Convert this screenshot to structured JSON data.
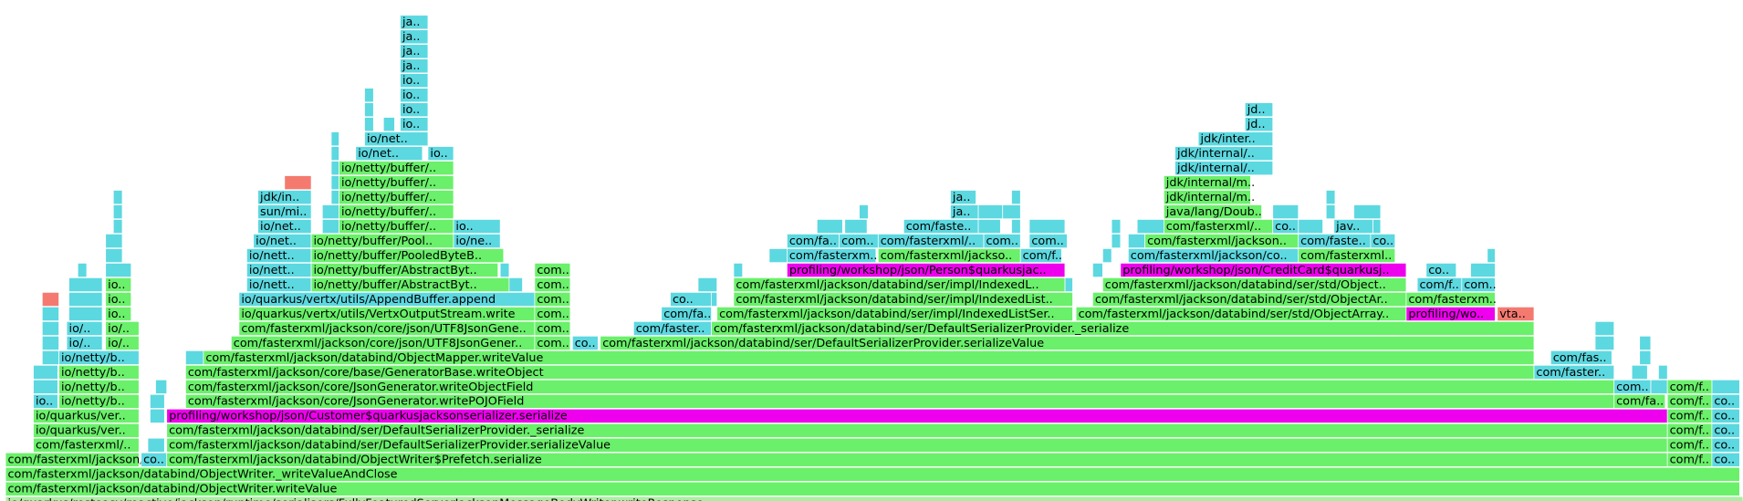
{
  "frames": [
    {
      "label": "io/quarkus/resteasy/reactive/jackson/runtime/serialisers/FullyFeaturedServerJacksonMessageBodyWriter.writeResponse"
    },
    {
      "label": "com/fasterxml/jackson/databind/ObjectWriter.writeValue"
    },
    {
      "label": "com/fasterxml/jackson/databind/ObjectWriter._writeValueAndClose"
    },
    {
      "label": "com/fasterxml/jackson/c.."
    },
    {
      "label": "co.."
    },
    {
      "label": "com/fasterxml/jackson/databind/ObjectWriter$Prefetch.serialize"
    },
    {
      "label": "com/f.."
    },
    {
      "label": "co.."
    },
    {
      "label": "com/fasterxml/.."
    },
    {
      "label": "com/fasterxml/jackson/databind/ser/DefaultSerializerProvider.serializeValue"
    },
    {
      "label": "com/f.."
    },
    {
      "label": "co.."
    },
    {
      "label": "io/quarkus/ver.."
    },
    {
      "label": "com/fasterxml/jackson/databind/ser/DefaultSerializerProvider._serialize"
    },
    {
      "label": "com/f.."
    },
    {
      "label": "co.."
    },
    {
      "label": "io/quarkus/ver.."
    },
    {
      "label": "profiling/workshop/json/Customer$quarkusjacksonserializer.serialize"
    },
    {
      "label": "com/f.."
    },
    {
      "label": "co.."
    },
    {
      "label": "io.."
    },
    {
      "label": "io/netty/b.."
    },
    {
      "label": "com/fasterxml/jackson/core/JsonGenerator.writePOJOField"
    },
    {
      "label": "com/fa.."
    },
    {
      "label": "com/f.."
    },
    {
      "label": "co.."
    },
    {
      "label": "io/netty/b.."
    },
    {
      "label": "com/fasterxml/jackson/core/JsonGenerator.writeObjectField"
    },
    {
      "label": "com.."
    },
    {
      "label": "com/f.."
    },
    {
      "label": "io/netty/b.."
    },
    {
      "label": "com/fasterxml/jackson/core/base/GeneratorBase.writeObject"
    },
    {
      "label": "com/faster.."
    },
    {
      "label": "io/netty/b.."
    },
    {
      "label": "com/fasterxml/jackson/databind/ObjectMapper.writeValue"
    },
    {
      "label": "com/fas.."
    },
    {
      "label": "io/.."
    },
    {
      "label": "io/.."
    },
    {
      "label": "com/fasterxml/jackson/core/json/UTF8JsonGener.."
    },
    {
      "label": "com.."
    },
    {
      "label": "co.."
    },
    {
      "label": "com/fasterxml/jackson/databind/ser/DefaultSerializerProvider.serializeValue"
    },
    {
      "label": "io/.."
    },
    {
      "label": "io/.."
    },
    {
      "label": "com/fasterxml/jackson/core/json/UTF8JsonGene.."
    },
    {
      "label": "com.."
    },
    {
      "label": "com/faster.."
    },
    {
      "label": "com/fasterxml/jackson/databind/ser/DefaultSerializerProvider._serialize"
    },
    {
      "label": "io.."
    },
    {
      "label": "io/quarkus/vertx/utils/VertxOutputStream.write"
    },
    {
      "label": "com.."
    },
    {
      "label": "com/fa.."
    },
    {
      "label": "com/fasterxml/jackson/databind/ser/impl/IndexedListSer.."
    },
    {
      "label": "com/fasterxml/jackson/databind/ser/std/ObjectArray.."
    },
    {
      "label": "profiling/wo.."
    },
    {
      "label": "vta.."
    },
    {
      "label": "io.."
    },
    {
      "label": "io/quarkus/vertx/utils/AppendBuffer.append"
    },
    {
      "label": "com.."
    },
    {
      "label": "co.."
    },
    {
      "label": "com/fasterxml/jackson/databind/ser/impl/IndexedList.."
    },
    {
      "label": "com/fasterxml/jackson/databind/ser/std/ObjectAr.."
    },
    {
      "label": "com/fasterxm.."
    },
    {
      "label": "io.."
    },
    {
      "label": "io/nett.."
    },
    {
      "label": "io/netty/buffer/AbstractByt.."
    },
    {
      "label": "com.."
    },
    {
      "label": "com/fasterxml/jackson/databind/ser/impl/IndexedL.."
    },
    {
      "label": "com/fasterxml/jackson/databind/ser/std/Object.."
    },
    {
      "label": "com/f.."
    },
    {
      "label": "com.."
    },
    {
      "label": "io/nett.."
    },
    {
      "label": "io/netty/buffer/AbstractByt.."
    },
    {
      "label": "com.."
    },
    {
      "label": "profiling/workshop/json/Person$quarkusjac.."
    },
    {
      "label": "profiling/workshop/json/CreditCard$quarkusj.."
    },
    {
      "label": "co.."
    },
    {
      "label": "io/nett.."
    },
    {
      "label": "io/netty/buffer/PooledByteB.."
    },
    {
      "label": "com/fasterxm.."
    },
    {
      "label": "com/fasterxml/jackso.."
    },
    {
      "label": "com/f.."
    },
    {
      "label": "com/fasterxml/jackson/co.."
    },
    {
      "label": "com/fasterxml.."
    },
    {
      "label": "io/net.."
    },
    {
      "label": "io/netty/buffer/Pool.."
    },
    {
      "label": "io/ne.."
    },
    {
      "label": "com/fa.."
    },
    {
      "label": "com.."
    },
    {
      "label": "com/fasterxml/.."
    },
    {
      "label": "com.."
    },
    {
      "label": "com.."
    },
    {
      "label": "com/fasterxml/jackson.."
    },
    {
      "label": "com/faste.."
    },
    {
      "label": "co.."
    },
    {
      "label": "io/net.."
    },
    {
      "label": "io/netty/buffer/.."
    },
    {
      "label": "io.."
    },
    {
      "label": "com/faste.."
    },
    {
      "label": "com/fasterxml/.."
    },
    {
      "label": "co.."
    },
    {
      "label": "jav.."
    },
    {
      "label": "sun/mi.."
    },
    {
      "label": "io/netty/buffer/.."
    },
    {
      "label": "ja.."
    },
    {
      "label": "java/lang/Doub.."
    },
    {
      "label": "jdk/in.."
    },
    {
      "label": "io/netty/buffer/.."
    },
    {
      "label": "ja.."
    },
    {
      "label": "jdk/internal/m.."
    },
    {
      "label": "io/netty/buffer/.."
    },
    {
      "label": "jdk/internal/m.."
    },
    {
      "label": "io/netty/buffer/.."
    },
    {
      "label": "jdk/internal/.."
    },
    {
      "label": "io/net.."
    },
    {
      "label": "io.."
    },
    {
      "label": "jdk/internal/.."
    },
    {
      "label": "io/net.."
    },
    {
      "label": "jdk/inter.."
    },
    {
      "label": "io.."
    },
    {
      "label": "jd.."
    },
    {
      "label": "io.."
    },
    {
      "label": "jd.."
    },
    {
      "label": "io.."
    },
    {
      "label": "io.."
    },
    {
      "label": "ja.."
    },
    {
      "label": "ja.."
    },
    {
      "label": "ja.."
    },
    {
      "label": "ja.."
    }
  ]
}
